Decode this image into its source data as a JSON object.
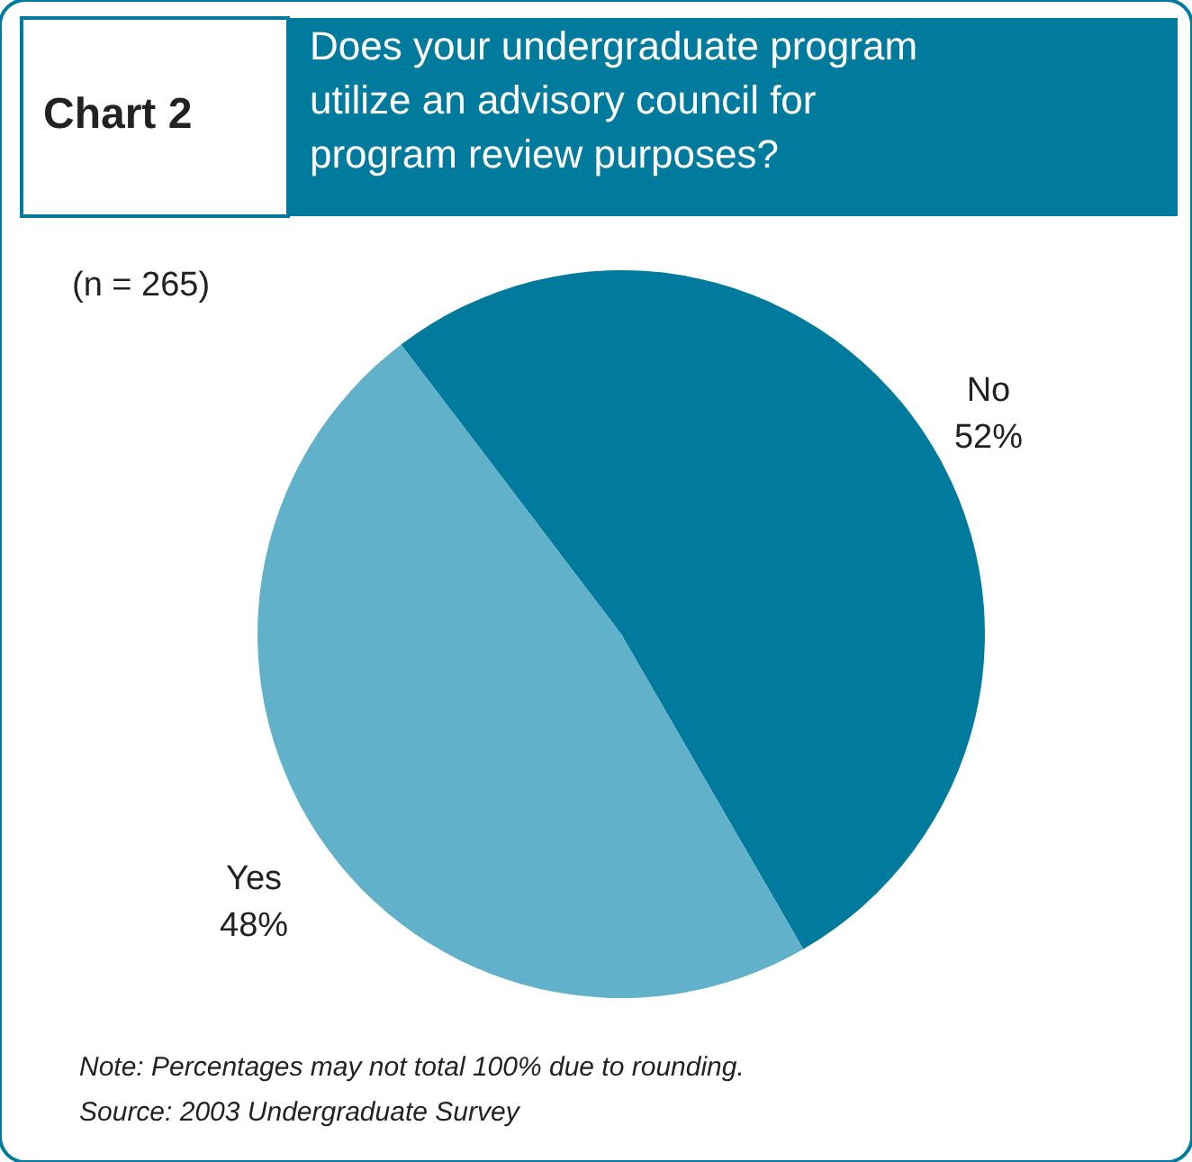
{
  "chart_data": {
    "type": "pie",
    "title": "Chart 2",
    "subtitle": "Does your undergraduate program utilize an advisory council for program review purposes?",
    "categories": [
      "No",
      "Yes"
    ],
    "values": [
      52,
      48
    ],
    "colors": [
      "#007b9e",
      "#62b1cb"
    ],
    "value_labels": [
      "52%",
      "48%"
    ],
    "annotations": [
      "(n = 265)",
      "Note: Percentages may not total 100% due to rounding.",
      "Source: 2003 Undergraduate Survey"
    ]
  }
}
